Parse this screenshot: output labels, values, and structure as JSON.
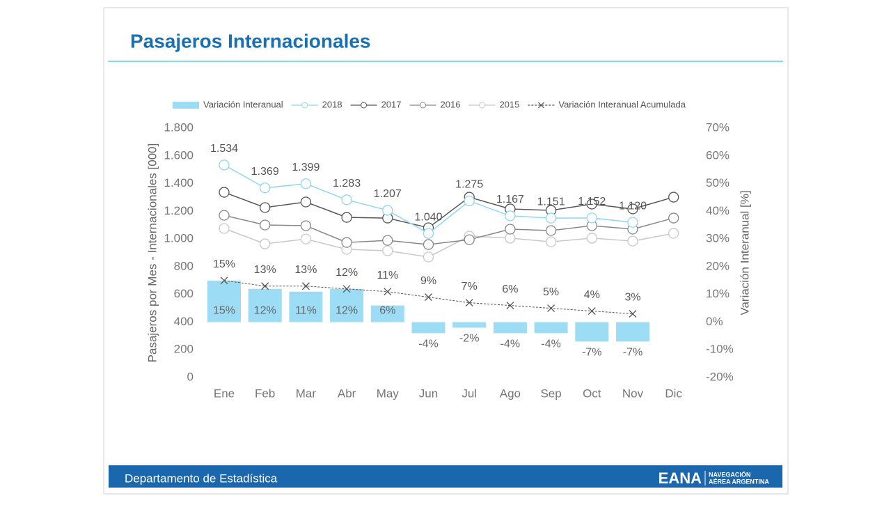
{
  "chart_data": {
    "type": "combo",
    "title": "Pasajeros Internacionales",
    "ylabel": "Pasajeros por Mes - Internacionales [000]",
    "y2label": "Variación Interanual [%]",
    "categories": [
      "Ene",
      "Feb",
      "Mar",
      "Abr",
      "May",
      "Jun",
      "Jul",
      "Ago",
      "Sep",
      "Oct",
      "Nov",
      "Dic"
    ],
    "ylim": [
      0,
      1800
    ],
    "yticks": [
      {
        "value": 0,
        "label": "0"
      },
      {
        "value": 200,
        "label": "200"
      },
      {
        "value": 400,
        "label": "400"
      },
      {
        "value": 600,
        "label": "600"
      },
      {
        "value": 800,
        "label": "800"
      },
      {
        "value": 1000,
        "label": "1.000"
      },
      {
        "value": 1200,
        "label": "1.200"
      },
      {
        "value": 1400,
        "label": "1.400"
      },
      {
        "value": 1600,
        "label": "1.600"
      },
      {
        "value": 1800,
        "label": "1.800"
      }
    ],
    "y2lim": [
      -20,
      70
    ],
    "y2ticks": [
      {
        "value": -20,
        "label": "-20%"
      },
      {
        "value": -10,
        "label": "-10%"
      },
      {
        "value": 0,
        "label": "0%"
      },
      {
        "value": 10,
        "label": "10%"
      },
      {
        "value": 20,
        "label": "20%"
      },
      {
        "value": 30,
        "label": "30%"
      },
      {
        "value": 40,
        "label": "40%"
      },
      {
        "value": 50,
        "label": "50%"
      },
      {
        "value": 60,
        "label": "60%"
      },
      {
        "value": 70,
        "label": "70%"
      }
    ],
    "legend": "top",
    "series": [
      {
        "name": "Variación Interanual",
        "type": "bar",
        "axis": "y2",
        "color": "#9ddcf5",
        "values": [
          15,
          12,
          11,
          12,
          6,
          -4,
          -2,
          -4,
          -4,
          -7,
          -7,
          null
        ],
        "value_labels": [
          "15%",
          "12%",
          "11%",
          "12%",
          "6%",
          "-4%",
          "-2%",
          "-4%",
          "-4%",
          "-7%",
          "-7%",
          null
        ]
      },
      {
        "name": "2018",
        "type": "line",
        "color": "#8fd6f2",
        "values": [
          1534,
          1369,
          1399,
          1283,
          1207,
          1040,
          1275,
          1167,
          1151,
          1152,
          1120,
          null
        ],
        "value_labels": [
          "1.534",
          "1.369",
          "1.399",
          "1.283",
          "1.207",
          "1.040",
          "1.275",
          "1.167",
          "1.151",
          "1.152",
          "1.120",
          null
        ]
      },
      {
        "name": "2017",
        "type": "line",
        "color": "#555555",
        "values": [
          1337,
          1227,
          1267,
          1156,
          1151,
          1081,
          1302,
          1217,
          1207,
          1252,
          1217,
          1302
        ]
      },
      {
        "name": "2016",
        "type": "line",
        "color": "#888888",
        "values": [
          1171,
          1101,
          1096,
          975,
          990,
          960,
          995,
          1071,
          1061,
          1096,
          1071,
          1151
        ]
      },
      {
        "name": "2015",
        "type": "line",
        "color": "#c8c8c8",
        "values": [
          1076,
          965,
          1000,
          925,
          915,
          870,
          1021,
          1006,
          980,
          1006,
          985,
          1041
        ]
      },
      {
        "name": "Variación Interanual Acumulada",
        "type": "line",
        "marker": "x",
        "dashed": true,
        "axis": "y2",
        "color": "#555555",
        "values": [
          15,
          13,
          13,
          12,
          11,
          9,
          7,
          6,
          5,
          4,
          3,
          null
        ],
        "value_labels": [
          "15%",
          "13%",
          "13%",
          "12%",
          "11%",
          "9%",
          "7%",
          "6%",
          "5%",
          "4%",
          "3%",
          null
        ]
      }
    ]
  },
  "footer": {
    "department": "Departamento de Estadística",
    "logo": "EANA",
    "logo_sub": [
      "NAVEGACIÓN",
      "AÉREA ARGENTINA"
    ]
  }
}
